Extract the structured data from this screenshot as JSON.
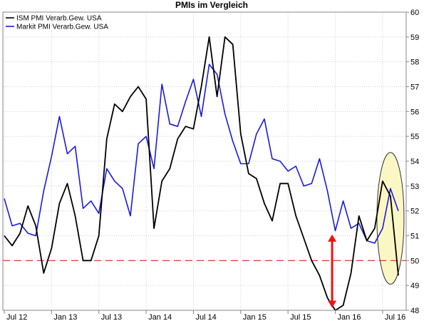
{
  "chart_data": {
    "type": "line",
    "title": "PMIs im Vergleich",
    "xlabel": "",
    "ylabel": "",
    "ylim": [
      48,
      60
    ],
    "y_ticks": [
      48,
      49,
      50,
      51,
      52,
      53,
      54,
      55,
      56,
      57,
      58,
      59,
      60
    ],
    "y_axis_side": "right",
    "x_ticks": [
      "Jul 12",
      "Jan 13",
      "Jul 13",
      "Jan 14",
      "Jul 14",
      "Jan 15",
      "Jul 15",
      "Jan 16",
      "Jul 16"
    ],
    "x_tick_months": [
      0,
      6,
      12,
      18,
      24,
      30,
      36,
      42,
      48
    ],
    "x_start_month": "2012-06",
    "grid": true,
    "legend_position": "top-left",
    "reference_line": {
      "value": 50,
      "color": "#dd2222",
      "style": "dashed"
    },
    "series": [
      {
        "name": "ISM PMI Verarb.Gew. USA",
        "color": "#000000",
        "x_month_index": [
          0,
          1,
          2,
          3,
          4,
          5,
          6,
          7,
          8,
          9,
          10,
          11,
          12,
          13,
          14,
          15,
          16,
          17,
          18,
          19,
          20,
          21,
          22,
          23,
          24,
          25,
          26,
          27,
          28,
          29,
          30,
          31,
          32,
          33,
          34,
          35,
          36,
          37,
          38,
          39,
          40,
          41,
          42,
          43,
          44,
          45,
          46,
          47,
          48,
          49,
          50
        ],
        "values": [
          51.0,
          50.6,
          51.1,
          52.2,
          51.4,
          49.5,
          50.5,
          52.3,
          53.1,
          51.8,
          50.0,
          50.0,
          51.0,
          54.9,
          56.3,
          56.0,
          56.6,
          57.0,
          56.5,
          51.3,
          53.2,
          53.7,
          54.9,
          55.4,
          55.3,
          57.0,
          59.0,
          56.6,
          59.0,
          58.7,
          55.1,
          53.5,
          53.3,
          52.3,
          51.6,
          53.1,
          53.1,
          51.8,
          50.9,
          50.0,
          49.4,
          48.5,
          48.0,
          48.2,
          49.5,
          51.8,
          50.8,
          51.3,
          53.2,
          52.6,
          49.4
        ]
      },
      {
        "name": "Markit PMI Verarb.Gew. USA",
        "color": "#1a1adf",
        "x_month_index": [
          0,
          1,
          2,
          3,
          4,
          5,
          6,
          7,
          8,
          9,
          10,
          11,
          12,
          13,
          14,
          15,
          16,
          17,
          18,
          19,
          20,
          21,
          22,
          23,
          24,
          25,
          26,
          27,
          28,
          29,
          30,
          31,
          32,
          33,
          34,
          35,
          36,
          37,
          38,
          39,
          40,
          41,
          42,
          43,
          44,
          45,
          46,
          47,
          48,
          49,
          50
        ],
        "values": [
          52.5,
          51.4,
          51.5,
          51.1,
          51.0,
          52.8,
          54.2,
          55.8,
          54.3,
          54.6,
          52.1,
          52.4,
          51.9,
          53.7,
          53.2,
          52.9,
          51.8,
          54.7,
          55.0,
          53.7,
          57.1,
          55.5,
          55.4,
          56.4,
          57.3,
          55.8,
          57.9,
          57.5,
          55.9,
          54.8,
          53.9,
          53.9,
          55.1,
          55.7,
          54.1,
          54.0,
          53.6,
          53.8,
          53.0,
          53.1,
          54.1,
          52.8,
          51.2,
          52.4,
          51.3,
          51.5,
          50.8,
          50.7,
          51.3,
          52.9,
          52.0
        ]
      }
    ]
  }
}
